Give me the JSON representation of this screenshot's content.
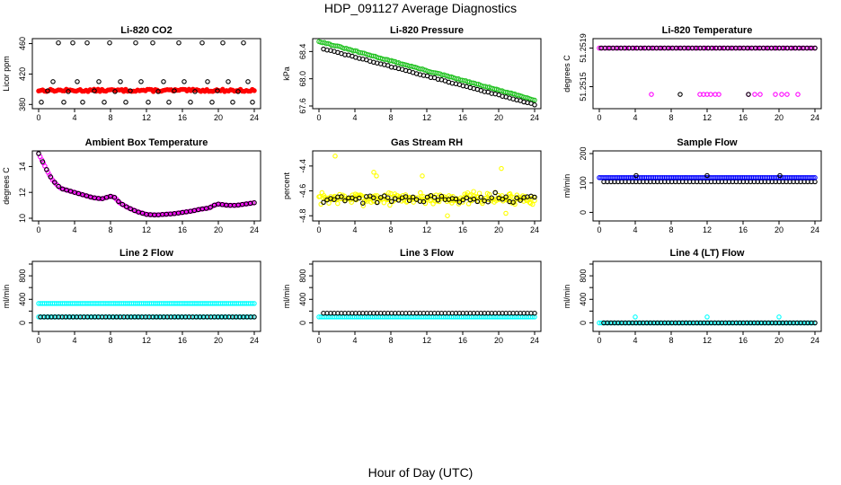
{
  "page": {
    "title": "HDP_091127  Average Diagnostics",
    "xlabel": "Hour of Day (UTC)"
  },
  "colors": {
    "black": "#000000",
    "red": "#ff0000",
    "green": "#22c222",
    "magenta": "#ff00ff",
    "yellow": "#ffff00",
    "blue": "#0000ff",
    "cyan": "#00ffff"
  },
  "chart_data": [
    {
      "type": "scatter",
      "title": "Li-820 CO2",
      "ylabel": "Licor ppm",
      "xlim": [
        0,
        24
      ],
      "ylim": [
        378,
        463
      ],
      "xticks": [
        0,
        4,
        8,
        12,
        16,
        20,
        24
      ],
      "yticks": [
        380,
        420,
        460
      ],
      "ytick_labels": [
        "380",
        "420",
        "460"
      ],
      "series": [
        {
          "color": "red",
          "style": "band",
          "x": [
            0,
            24
          ],
          "y": [
            398.5,
            398.5
          ],
          "spread": 3
        },
        {
          "color": "black",
          "style": "points",
          "x": [
            0.3,
            1.0,
            1.6,
            2.2,
            2.8,
            3.3,
            3.8,
            4.3,
            4.9,
            5.4,
            6.2,
            6.7,
            7.3,
            7.9,
            8.5,
            9.1,
            9.7,
            10.2,
            10.8,
            11.4,
            12.2,
            12.7,
            13.3,
            13.9,
            14.5,
            15.1,
            15.6,
            16.2,
            16.9,
            17.4,
            18.2,
            18.8,
            19.3,
            19.9,
            20.5,
            21.1,
            21.6,
            22.2,
            22.8,
            23.3,
            23.8
          ],
          "y": [
            383,
            398,
            410,
            461,
            383,
            397,
            461,
            410,
            383,
            461,
            398,
            410,
            383,
            461,
            397,
            410,
            383,
            398,
            461,
            410,
            383,
            461,
            397,
            410,
            383,
            398,
            461,
            410,
            383,
            397,
            461,
            410,
            383,
            398,
            461,
            410,
            383,
            397,
            461,
            410,
            383
          ]
        }
      ]
    },
    {
      "type": "scatter",
      "title": "Li-820 Pressure",
      "ylabel": "kPa",
      "xlim": [
        0,
        24
      ],
      "ylim": [
        67.6,
        68.55
      ],
      "xticks": [
        0,
        4,
        8,
        12,
        16,
        20,
        24
      ],
      "yticks": [
        67.6,
        68.0,
        68.4
      ],
      "ytick_labels": [
        "67.6",
        "68.0",
        "68.4"
      ],
      "series": [
        {
          "color": "green",
          "style": "trend",
          "x0": 0,
          "x1": 24,
          "y0": 68.55,
          "y1": 67.69,
          "n": 120,
          "spread": 0.015
        },
        {
          "color": "black",
          "style": "trend",
          "x0": 0.5,
          "x1": 24,
          "y0": 68.44,
          "y1": 67.62,
          "n": 60,
          "spread": 0.012
        }
      ]
    },
    {
      "type": "scatter",
      "title": "Li-820 Temperature",
      "ylabel": "degrees C",
      "xlim": [
        0,
        24
      ],
      "ylim": [
        51.2513,
        51.25197
      ],
      "xticks": [
        0,
        4,
        8,
        12,
        16,
        20,
        24
      ],
      "yticks": [
        51.2515,
        51.2519
      ],
      "ytick_labels": [
        "51.2515",
        "51.2519"
      ],
      "series": [
        {
          "color": "magenta",
          "style": "flat",
          "x0": 0,
          "x1": 24,
          "y": 51.2519,
          "n": 80
        },
        {
          "color": "magenta",
          "style": "points",
          "x": [
            5.8,
            11.2,
            11.6,
            12.0,
            12.4,
            12.9,
            13.3,
            16.6,
            17.3,
            17.9,
            19.6,
            20.3,
            20.9,
            22.1
          ],
          "y": [
            51.25142,
            51.25142,
            51.25142,
            51.25142,
            51.25142,
            51.25142,
            51.25142,
            51.25142,
            51.25142,
            51.25142,
            51.25142,
            51.25142,
            51.25142,
            51.25142
          ]
        },
        {
          "color": "black",
          "style": "flat",
          "x0": 0.2,
          "x1": 24,
          "y": 51.2519,
          "n": 55
        },
        {
          "color": "black",
          "style": "points",
          "x": [
            9.0,
            16.6
          ],
          "y": [
            51.25142,
            51.25142
          ]
        }
      ]
    },
    {
      "type": "scatter",
      "title": "Ambient Box Temperature",
      "ylabel": "degrees C",
      "xlim": [
        0,
        24
      ],
      "ylim": [
        10,
        15
      ],
      "xticks": [
        0,
        4,
        8,
        12,
        16,
        20,
        24
      ],
      "yticks": [
        10,
        12,
        14
      ],
      "ytick_labels": [
        "10",
        "12",
        "14"
      ],
      "series": [
        {
          "color": "magenta",
          "style": "curve",
          "n": 140,
          "knots_x": [
            0,
            0.5,
            1,
            1.5,
            2,
            2.5,
            3,
            4,
            5,
            6,
            7,
            8,
            8.5,
            9,
            10,
            11,
            12,
            13,
            14,
            15,
            16,
            17,
            18,
            19,
            19.5,
            20,
            21,
            22,
            23,
            24
          ],
          "knots_y": [
            15.0,
            14.3,
            13.6,
            13.0,
            12.6,
            12.3,
            12.2,
            12.0,
            11.8,
            11.6,
            11.5,
            11.7,
            11.6,
            11.2,
            10.8,
            10.5,
            10.3,
            10.25,
            10.3,
            10.35,
            10.45,
            10.55,
            10.7,
            10.8,
            11.0,
            11.1,
            11.0,
            11.0,
            11.1,
            11.2
          ]
        },
        {
          "color": "black",
          "style": "curve",
          "n": 55,
          "knots_x": [
            0,
            0.5,
            1,
            1.5,
            2,
            2.5,
            3,
            4,
            5,
            6,
            7,
            8,
            8.5,
            9,
            10,
            11,
            12,
            13,
            14,
            15,
            16,
            17,
            18,
            19,
            19.5,
            20,
            21,
            22,
            23,
            24
          ],
          "knots_y": [
            15.0,
            14.3,
            13.6,
            13.0,
            12.6,
            12.3,
            12.2,
            12.0,
            11.8,
            11.6,
            11.5,
            11.7,
            11.6,
            11.2,
            10.8,
            10.5,
            10.3,
            10.25,
            10.3,
            10.35,
            10.45,
            10.55,
            10.7,
            10.8,
            11.0,
            11.1,
            11.0,
            11.0,
            11.1,
            11.2
          ]
        }
      ]
    },
    {
      "type": "scatter",
      "title": "Gas Stream RH",
      "ylabel": "percent",
      "xlim": [
        0,
        24
      ],
      "ylim": [
        -4.82,
        -4.3
      ],
      "xticks": [
        0,
        4,
        8,
        12,
        16,
        20,
        24
      ],
      "yticks": [
        -4.8,
        -4.6,
        -4.4
      ],
      "ytick_labels": [
        "-4.8",
        "-4.6",
        "-4.4"
      ],
      "series": [
        {
          "color": "yellow",
          "style": "noise",
          "x0": 0,
          "x1": 24,
          "n": 220,
          "center": -4.66,
          "spread": 0.07,
          "seed": 7
        },
        {
          "color": "yellow",
          "style": "points",
          "x": [
            1.8,
            6.1,
            6.4,
            11.5,
            20.3,
            20.8,
            14.3
          ],
          "y": [
            -4.32,
            -4.45,
            -4.48,
            -4.48,
            -4.42,
            -4.78,
            -4.8
          ]
        },
        {
          "color": "black",
          "style": "noise",
          "x0": 0.5,
          "x1": 24,
          "n": 60,
          "center": -4.66,
          "spread": 0.055,
          "seed": 21
        }
      ]
    },
    {
      "type": "scatter",
      "title": "Sample Flow",
      "ylabel": "ml/min",
      "xlim": [
        0,
        24
      ],
      "ylim": [
        -20,
        200
      ],
      "xticks": [
        0,
        4,
        8,
        12,
        16,
        20,
        24
      ],
      "yticks": [
        0,
        100,
        200
      ],
      "ytick_labels": [
        "0",
        "100",
        "200"
      ],
      "series": [
        {
          "color": "black",
          "style": "flat",
          "x0": 0.5,
          "x1": 24,
          "y": 104,
          "n": 60
        },
        {
          "color": "blue",
          "style": "flat",
          "x0": 0,
          "x1": 24,
          "y": 118,
          "n": 120
        },
        {
          "color": "black",
          "style": "points",
          "x": [
            4.1,
            12.0,
            20.1
          ],
          "y": [
            125,
            125,
            125
          ]
        }
      ]
    },
    {
      "type": "scatter",
      "title": "Line 2 Flow",
      "ylabel": "ml/min",
      "xlim": [
        0,
        24
      ],
      "ylim": [
        -100,
        1000
      ],
      "xticks": [
        0,
        4,
        8,
        12,
        16,
        20,
        24
      ],
      "yticks": [
        0,
        200,
        400,
        600,
        800,
        1000
      ],
      "ytick_labels": [
        "0",
        "400",
        "800"
      ],
      "series": [
        {
          "color": "cyan",
          "style": "flat",
          "x0": 0,
          "x1": 24,
          "y": 330,
          "n": 110
        },
        {
          "color": "cyan",
          "style": "flat",
          "x0": 0,
          "x1": 24,
          "y": 100,
          "n": 110
        },
        {
          "color": "black",
          "style": "flat",
          "x0": 0.2,
          "x1": 24,
          "y": 100,
          "n": 60
        }
      ]
    },
    {
      "type": "scatter",
      "title": "Line 3 Flow",
      "ylabel": "ml/min",
      "xlim": [
        0,
        24
      ],
      "ylim": [
        -100,
        1000
      ],
      "xticks": [
        0,
        4,
        8,
        12,
        16,
        20,
        24
      ],
      "yticks": [
        0,
        200,
        400,
        600,
        800,
        1000
      ],
      "ytick_labels": [
        "0",
        "400",
        "800"
      ],
      "series": [
        {
          "color": "cyan",
          "style": "flat",
          "x0": 0,
          "x1": 24,
          "y": 100,
          "n": 110
        },
        {
          "color": "black",
          "style": "flat",
          "x0": 0.5,
          "x1": 24,
          "y": 165,
          "n": 60
        }
      ]
    },
    {
      "type": "scatter",
      "title": "Line 4 (LT) Flow",
      "ylabel": "ml/min",
      "xlim": [
        0,
        24
      ],
      "ylim": [
        -100,
        1000
      ],
      "xticks": [
        0,
        4,
        8,
        12,
        16,
        20,
        24
      ],
      "yticks": [
        0,
        200,
        400,
        600,
        800,
        1000
      ],
      "ytick_labels": [
        "0",
        "400",
        "800"
      ],
      "series": [
        {
          "color": "cyan",
          "style": "flat",
          "x0": 0,
          "x1": 24,
          "y": 0,
          "n": 100
        },
        {
          "color": "black",
          "style": "flat",
          "x0": 0.5,
          "x1": 24,
          "y": 0,
          "n": 60
        },
        {
          "color": "cyan",
          "style": "points",
          "x": [
            4.0,
            12.0,
            20.0
          ],
          "y": [
            100,
            100,
            100
          ]
        }
      ]
    }
  ]
}
